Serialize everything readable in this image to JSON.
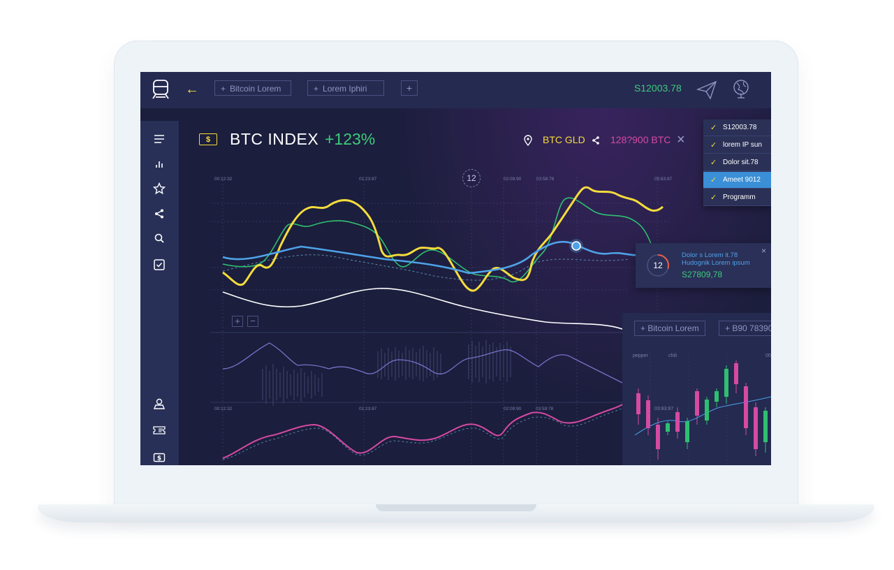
{
  "topbar": {
    "tabs": [
      {
        "label": "Bitcoin Lorem"
      },
      {
        "label": "Lorem Iphiri"
      }
    ],
    "add_tab": "+",
    "balance": "S12003.78"
  },
  "index": {
    "currency_symbol": "$",
    "title": "BTC INDEX",
    "change": "+123%",
    "location_label": "BTC GLD",
    "amount": "128?900 BTC",
    "close": "×"
  },
  "marker": "12",
  "time_labels": {
    "top": [
      "00:12:32",
      "01:23:87",
      "02:09:90",
      "03:58:78",
      "05:83:87"
    ],
    "bottom": [
      "00:12:32",
      "01:23:87",
      "02:09:90",
      "03:59:78"
    ]
  },
  "zoom": {
    "in": "+",
    "out": "−"
  },
  "dropdown": {
    "items": [
      {
        "label": "S12003.78"
      },
      {
        "label": "lorem IP sun"
      },
      {
        "label": "Dolor sit.78"
      },
      {
        "label": "Ameet 9012"
      },
      {
        "label": "Programm"
      }
    ],
    "selected": "Ameet 9012"
  },
  "tooltip": {
    "number": "12",
    "line1": "Dolor s Lorem it.78",
    "line2": "Hudognik Lorem ipsum",
    "value": "S27809,78",
    "close": "×",
    "progress": 0.3
  },
  "mini_panel": {
    "tabs": [
      {
        "label": "Bitcoin Lorem"
      },
      {
        "label": "B90 78390"
      }
    ],
    "labels": [
      "pepper",
      "chili",
      "00",
      "03:83:87"
    ]
  },
  "colors": {
    "accent_yellow": "#f5dc3c",
    "green": "#3ecb7b",
    "blue": "#4ea2e8",
    "pink": "#d54aa3",
    "purple": "#7a70c8"
  }
}
